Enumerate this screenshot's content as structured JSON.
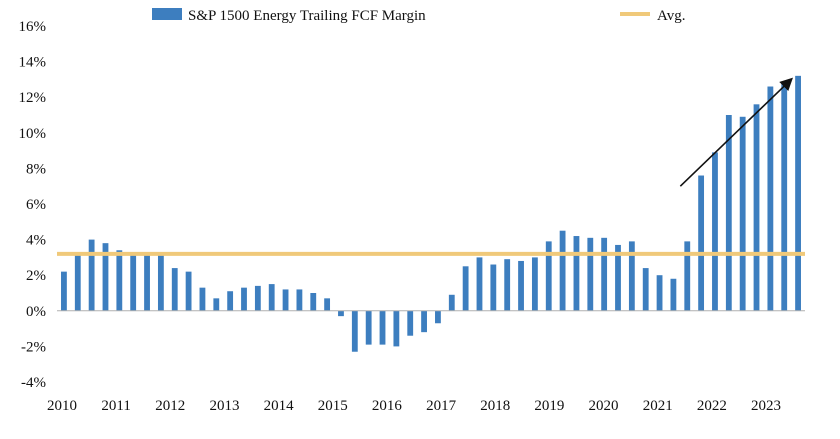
{
  "chart_data": {
    "type": "bar",
    "title": "",
    "xlabel": "",
    "ylabel": "",
    "ylim": [
      -4,
      16
    ],
    "yticks": [
      -4,
      -2,
      0,
      2,
      4,
      6,
      8,
      10,
      12,
      14,
      16
    ],
    "ytick_labels": [
      "-4%",
      "-2%",
      "0%",
      "2%",
      "4%",
      "6%",
      "8%",
      "10%",
      "12%",
      "14%",
      "16%"
    ],
    "xtick_labels": [
      "2010",
      "2011",
      "2012",
      "2013",
      "2014",
      "2015",
      "2016",
      "2017",
      "2018",
      "2019",
      "2020",
      "2021",
      "2022",
      "2023"
    ],
    "grid": false,
    "legend_position": "top",
    "series": [
      {
        "name": "S&P 1500 Energy Trailing FCF Margin",
        "color": "#3d7ebf",
        "values": [
          2.2,
          3.2,
          4.0,
          3.8,
          3.4,
          3.2,
          3.2,
          3.2,
          2.4,
          2.2,
          1.3,
          0.7,
          1.1,
          1.3,
          1.4,
          1.5,
          1.2,
          1.2,
          1.0,
          0.7,
          -0.3,
          -2.3,
          -1.9,
          -1.9,
          -2.0,
          -1.4,
          -1.2,
          -0.7,
          0.9,
          2.5,
          3.0,
          2.6,
          2.9,
          2.8,
          3.0,
          3.9,
          4.5,
          4.2,
          4.1,
          4.1,
          3.7,
          3.9,
          2.4,
          2.0,
          1.8,
          3.9,
          7.6,
          8.9,
          11.0,
          10.9,
          11.6,
          12.6,
          12.8,
          13.2
        ]
      }
    ],
    "reference_lines": [
      {
        "name": "Avg.",
        "value": 3.2,
        "color": "#f0c97a"
      }
    ],
    "annotations": [
      {
        "kind": "arrow",
        "from": {
          "x_index": 44.5,
          "y": 7
        },
        "to": {
          "x_index": 52.5,
          "y": 13
        }
      }
    ]
  }
}
